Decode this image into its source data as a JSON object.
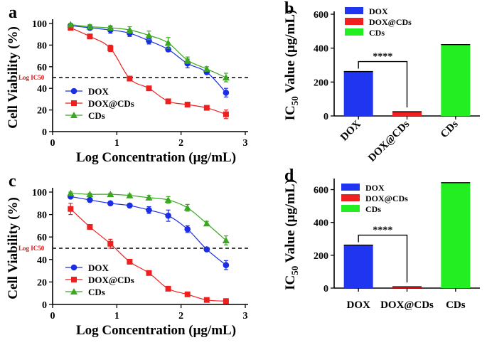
{
  "panels": [
    {
      "letter": "a",
      "type": "line",
      "ylabel": "Cell Viability (%)",
      "xlabel": "Log Concentration (μg/mL)",
      "xlim": [
        0,
        3
      ],
      "ylim": [
        0,
        100
      ],
      "xticks": [
        "0",
        "1",
        "2",
        "3"
      ],
      "yticks": [
        "0",
        "20",
        "40",
        "60",
        "80",
        "100"
      ],
      "ic50_label": "Log IC50",
      "ic50_value": 50,
      "series": [
        {
          "name": "DOX",
          "color": "#1a2ee6",
          "marker": "circle",
          "x": [
            0.28,
            0.58,
            0.9,
            1.2,
            1.5,
            1.8,
            2.1,
            2.4,
            2.7
          ],
          "y": [
            98,
            96,
            94,
            91,
            84,
            76,
            63,
            55,
            36
          ],
          "err": [
            1,
            2,
            3,
            3,
            3,
            2,
            4,
            2,
            4
          ]
        },
        {
          "name": "DOX@CDs",
          "color": "#ee1f1f",
          "marker": "square",
          "x": [
            0.28,
            0.58,
            0.9,
            1.2,
            1.5,
            1.8,
            2.1,
            2.4,
            2.7
          ],
          "y": [
            96,
            88,
            77,
            49,
            40,
            28,
            25,
            22,
            16
          ],
          "err": [
            1,
            1,
            3,
            2,
            1,
            1,
            1,
            1,
            4
          ]
        },
        {
          "name": "CDs",
          "color": "#3aa81e",
          "marker": "triangle",
          "x": [
            0.28,
            0.58,
            0.9,
            1.2,
            1.5,
            1.8,
            2.1,
            2.4,
            2.7
          ],
          "y": [
            99,
            97,
            96,
            94,
            89,
            82,
            66,
            58,
            50
          ],
          "err": [
            1,
            2,
            2,
            3,
            4,
            5,
            3,
            2,
            4
          ]
        }
      ]
    },
    {
      "letter": "b",
      "type": "bar",
      "ylabel": "IC50 Value (μg/mL)",
      "ylim": [
        0,
        600
      ],
      "yticks": [
        "0",
        "200",
        "400",
        "600"
      ],
      "categories": [
        "DOX",
        "DOX@CDs",
        "CDs"
      ],
      "values": [
        262,
        25,
        421
      ],
      "colors": [
        "#1f35f0",
        "#f02020",
        "#22ee22"
      ],
      "significance": "****"
    },
    {
      "letter": "c",
      "type": "line",
      "ylabel": "Cell Viability (%)",
      "xlabel": "Log Concentration (μg/mL)",
      "xlim": [
        0,
        3
      ],
      "ylim": [
        0,
        100
      ],
      "xticks": [
        "0",
        "1",
        "2",
        "3"
      ],
      "yticks": [
        "0",
        "20",
        "40",
        "60",
        "80",
        "100"
      ],
      "ic50_label": "Log IC50",
      "ic50_value": 50,
      "series": [
        {
          "name": "DOX",
          "color": "#1a2ee6",
          "marker": "circle",
          "x": [
            0.28,
            0.58,
            0.9,
            1.2,
            1.5,
            1.8,
            2.1,
            2.4,
            2.7
          ],
          "y": [
            96,
            93,
            90,
            88,
            84,
            79,
            67,
            49,
            35
          ],
          "err": [
            1,
            1,
            1,
            1,
            3,
            5,
            3,
            1,
            4
          ]
        },
        {
          "name": "DOX@CDs",
          "color": "#ee1f1f",
          "marker": "square",
          "x": [
            0.28,
            0.58,
            0.9,
            1.2,
            1.5,
            1.8,
            2.1,
            2.4,
            2.7
          ],
          "y": [
            85,
            69,
            54,
            38,
            28,
            14,
            9,
            4,
            3
          ],
          "err": [
            5,
            1,
            4,
            1,
            1,
            1,
            1,
            1,
            1
          ]
        },
        {
          "name": "CDs",
          "color": "#3aa81e",
          "marker": "triangle",
          "x": [
            0.28,
            0.58,
            0.9,
            1.2,
            1.5,
            1.8,
            2.1,
            2.4,
            2.7
          ],
          "y": [
            99,
            98,
            98,
            97,
            95,
            93,
            86,
            72,
            57
          ],
          "err": [
            1,
            1,
            1,
            1,
            2,
            3,
            3,
            2,
            4
          ]
        }
      ]
    },
    {
      "letter": "d",
      "type": "bar",
      "ylabel": "IC50 Value (μg/mL)",
      "ylim": [
        0,
        650
      ],
      "yticks": [
        "0",
        "200",
        "400",
        "600"
      ],
      "categories": [
        "DOX",
        "DOX@CDs",
        "CDs"
      ],
      "values": [
        262,
        8,
        642
      ],
      "colors": [
        "#1f35f0",
        "#f02020",
        "#22ee22"
      ],
      "significance": "****"
    }
  ]
}
